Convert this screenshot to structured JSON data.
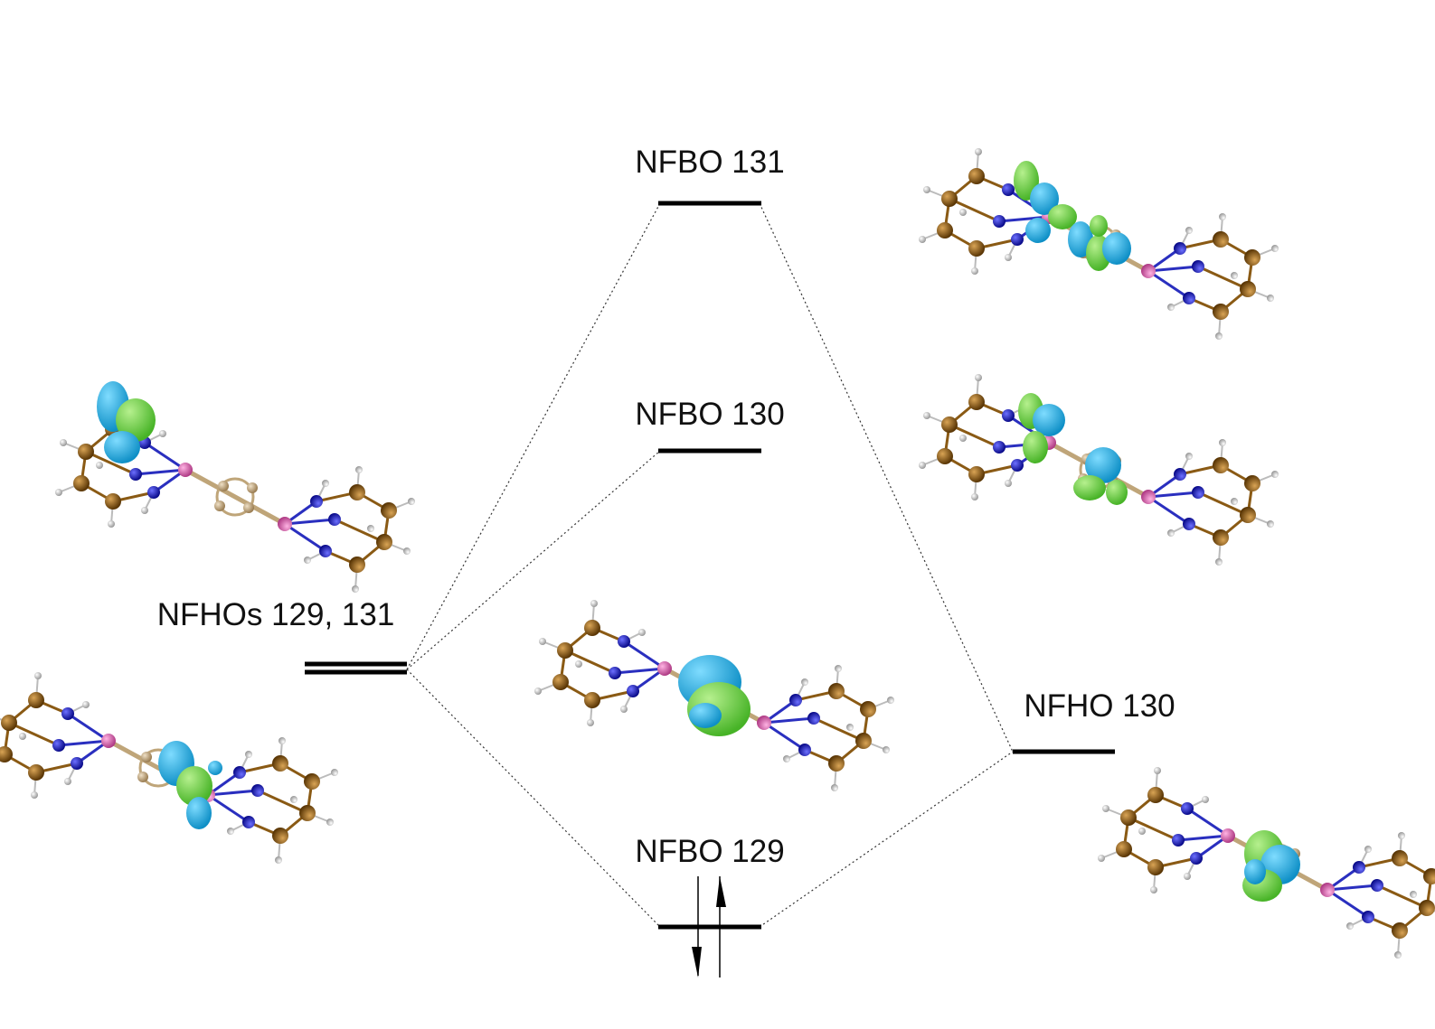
{
  "labels": {
    "nfbo_131": "NFBO 131",
    "nfbo_130": "NFBO 130",
    "nfbo_129": "NFBO 129",
    "nfhos": "NFHOs 129, 131",
    "nfho_130": "NFHO 130"
  },
  "colors": {
    "line": "#000000",
    "connector": "#333333",
    "carbon": "#8a5a14",
    "carbon_light": "#c6a97c",
    "nitrogen": "#1f22d6",
    "hydrogen": "#f2f2f2",
    "boron": "#e070b8",
    "lobe_positive": "#1ea6de",
    "lobe_negative": "#6fd646"
  },
  "icons": [
    "molecule-orbital-image",
    "spin-up-arrow",
    "spin-down-arrow"
  ]
}
